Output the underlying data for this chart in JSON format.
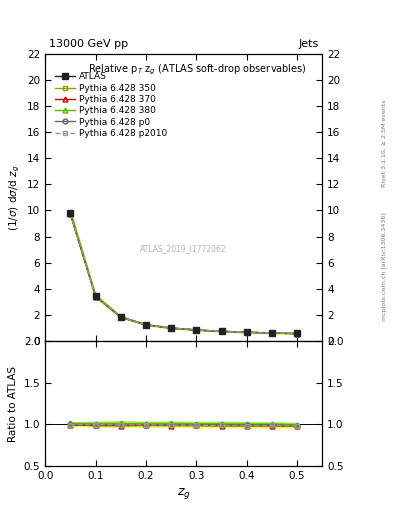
{
  "title_top": "13000 GeV pp",
  "title_right": "Jets",
  "plot_title": "Relative p$_T$ z$_g$ (ATLAS soft-drop observables)",
  "ylabel_main": "(1/σ) dσ/d z$_g$",
  "ylabel_ratio": "Ratio to ATLAS",
  "xlabel": "z$_g$",
  "right_label_top": "Rivet 3.1.10, ≥ 2.5M events",
  "right_label_bottom": "mcplots.cern.ch [arXiv:1306.3436]",
  "watermark": "ATLAS_2019_I1772062",
  "zg_values": [
    0.05,
    0.1,
    0.15,
    0.2,
    0.25,
    0.3,
    0.35,
    0.4,
    0.45,
    0.5
  ],
  "atlas_y": [
    9.8,
    3.45,
    1.85,
    1.25,
    1.0,
    0.85,
    0.75,
    0.68,
    0.62,
    0.58
  ],
  "atlas_yerr": [
    0.15,
    0.08,
    0.05,
    0.04,
    0.03,
    0.03,
    0.025,
    0.025,
    0.02,
    0.02
  ],
  "py350_y": [
    9.75,
    3.42,
    1.83,
    1.24,
    0.99,
    0.84,
    0.74,
    0.67,
    0.61,
    0.57
  ],
  "py370_y": [
    9.72,
    3.4,
    1.82,
    1.235,
    0.985,
    0.838,
    0.737,
    0.668,
    0.609,
    0.568
  ],
  "py380_y": [
    9.9,
    3.48,
    1.87,
    1.26,
    1.01,
    0.855,
    0.755,
    0.682,
    0.622,
    0.578
  ],
  "pyp0_y": [
    9.78,
    3.44,
    1.84,
    1.245,
    0.992,
    0.843,
    0.742,
    0.672,
    0.613,
    0.571
  ],
  "pyp2010_y": [
    9.76,
    3.43,
    1.835,
    1.242,
    0.99,
    0.841,
    0.74,
    0.67,
    0.611,
    0.569
  ],
  "py350_band_lo": [
    9.6,
    3.35,
    1.79,
    1.21,
    0.97,
    0.82,
    0.725,
    0.655,
    0.596,
    0.556
  ],
  "py350_band_hi": [
    9.9,
    3.5,
    1.87,
    1.27,
    1.01,
    0.86,
    0.755,
    0.685,
    0.624,
    0.584
  ],
  "py380_band_lo": [
    9.75,
    3.4,
    1.82,
    1.23,
    0.985,
    0.835,
    0.735,
    0.666,
    0.608,
    0.566
  ],
  "py380_band_hi": [
    10.05,
    3.56,
    1.92,
    1.29,
    1.035,
    0.875,
    0.775,
    0.698,
    0.636,
    0.59
  ],
  "series_colors": {
    "atlas": "#222222",
    "py350": "#999900",
    "py370": "#cc0000",
    "py380": "#55bb00",
    "pyp0": "#666666",
    "pyp2010": "#999999"
  },
  "ylim_main": [
    0,
    22
  ],
  "ylim_ratio": [
    0.5,
    2.0
  ],
  "yticks_main": [
    0,
    2,
    4,
    6,
    8,
    10,
    12,
    14,
    16,
    18,
    20,
    22
  ],
  "yticks_ratio": [
    0.5,
    1.0,
    1.5,
    2.0
  ],
  "xlim": [
    0.0,
    0.55
  ],
  "xticks": [
    0.0,
    0.1,
    0.2,
    0.3,
    0.4,
    0.5
  ]
}
